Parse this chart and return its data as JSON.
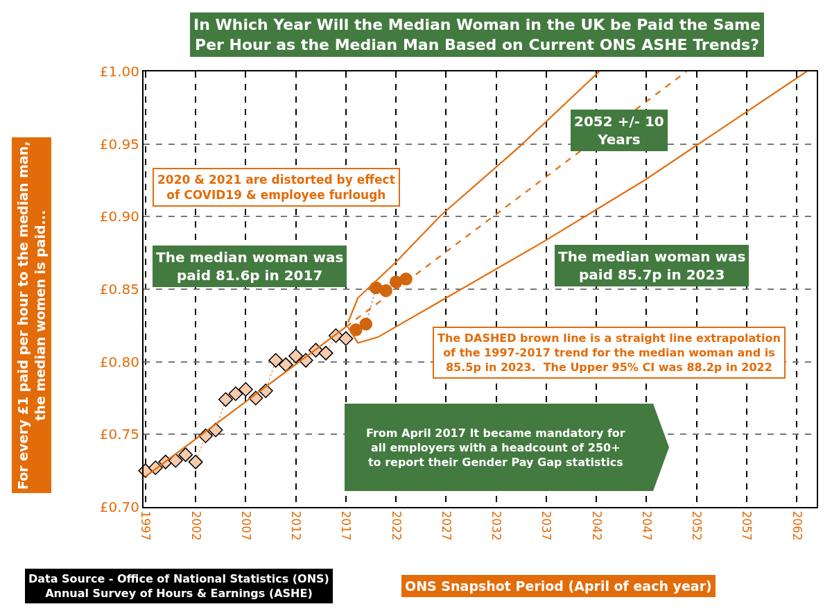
{
  "chart_data": {
    "type": "line",
    "title": "In Which Year Will the Median Woman in the UK be Paid the Same\nPer Hour as the Median Man Based on Current ONS ASHE Trends?",
    "xlabel": "ONS Snapshot Period (April of each year)",
    "ylabel": "For every £1 paid per hour to the median man,\nthe median women is paid...",
    "xlim": [
      1996.8,
      2064
    ],
    "xticks": [
      1997,
      2002,
      2007,
      2012,
      2017,
      2022,
      2027,
      2032,
      2037,
      2042,
      2047,
      2052,
      2057,
      2062
    ],
    "ylim": [
      0.7,
      1.0
    ],
    "yticks": [
      {
        "value": 0.7,
        "label": "£0.70"
      },
      {
        "value": 0.75,
        "label": "£0.75"
      },
      {
        "value": 0.8,
        "label": "£0.80"
      },
      {
        "value": 0.85,
        "label": "£0.85"
      },
      {
        "value": 0.9,
        "label": "£0.90"
      },
      {
        "value": 0.95,
        "label": "£0.95"
      },
      {
        "value": 1.0,
        "label": "£1.00"
      }
    ],
    "grid": true,
    "series": [
      {
        "color": "#f8cbad",
        "marker": "diamond",
        "line_style": "dotted",
        "x": [
          1997,
          1998,
          1999,
          2000,
          2001,
          2002,
          2003,
          2004,
          2005,
          2006,
          2007,
          2008,
          2009,
          2010,
          2011,
          2012,
          2013,
          2014,
          2015,
          2016,
          2017
        ],
        "values": [
          0.725,
          0.727,
          0.731,
          0.732,
          0.736,
          0.731,
          0.749,
          0.753,
          0.774,
          0.778,
          0.781,
          0.775,
          0.78,
          0.801,
          0.798,
          0.804,
          0.801,
          0.808,
          0.806,
          0.818,
          0.816
        ]
      },
      {
        "color": "#d0650f",
        "marker": "circle",
        "line_style": "dotted",
        "x": [
          2018,
          2019,
          2020,
          2021,
          2022,
          2023
        ],
        "values": [
          0.822,
          0.826,
          0.851,
          0.849,
          0.855,
          0.857
        ]
      },
      {
        "color": "#e36c0a",
        "marker": "none",
        "line_style": "solid",
        "x": [
          1997,
          2017
        ],
        "values": [
          0.721,
          0.824
        ]
      },
      {
        "color": "#e36c0a",
        "marker": "none",
        "line_style": "dashed",
        "x": [
          2017,
          2051
        ],
        "values": [
          0.824,
          1.0
        ]
      },
      {
        "color": "#e36c0a",
        "marker": "none",
        "line_style": "solid",
        "x": [
          2017.2,
          2018.2,
          2021.9,
          2026.5,
          2034.3,
          2042.3
        ],
        "values": [
          0.827,
          0.844,
          0.868,
          0.901,
          0.948,
          1.0
        ]
      },
      {
        "color": "#e36c0a",
        "marker": "none",
        "line_style": "solid",
        "x": [
          2017.2,
          2018.2,
          2020.2,
          2026.5,
          2036.8,
          2046.8,
          2063.0
        ],
        "values": [
          0.824,
          0.813,
          0.817,
          0.842,
          0.883,
          0.925,
          1.0
        ]
      }
    ],
    "annotations": [
      "2020 & 2021 are distorted by effect\nof COVID19 & employee furlough",
      "The median woman was\npaid 81.6p in 2017",
      "The median woman was\npaid 85.7p in 2023",
      "2052 +/- 10\nYears",
      "The DASHED brown line is a straight line extrapolation\nof the 1997-2017 trend for the median woman and is\n85.5p in 2023.  The Upper 95% CI was 88.2p in 2022",
      "From April 2017 It became mandatory for\nall employers with a headcount of 250+\nto report their Gender Pay Gap statistics",
      "Data Source - Office of National Statistics (ONS)\nAnnual Survey of Hours & Earnings (ASHE)"
    ]
  }
}
